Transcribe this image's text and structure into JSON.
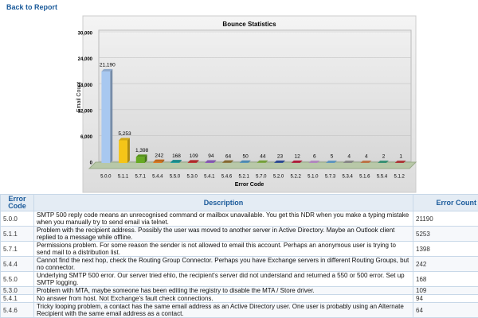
{
  "header": {
    "link": "Back to Report"
  },
  "chart_data": {
    "type": "bar",
    "title": "Bounce Statistics",
    "y_label": "Email Count",
    "x_label": "Error Code",
    "categories": [
      "5.0.0",
      "5.1.1",
      "5.7.1",
      "5.4.4",
      "5.5.0",
      "5.3.0",
      "5.4.1",
      "5.4.6",
      "5.2.1",
      "5.7.0",
      "5.2.0",
      "5.2.2",
      "5.1.0",
      "5.7.3",
      "5.3.4",
      "5.1.6",
      "5.5.4",
      "5.1.2"
    ],
    "values": [
      21190,
      5253,
      1398,
      242,
      168,
      109,
      94,
      64,
      50,
      44,
      23,
      12,
      6,
      5,
      4,
      4,
      2,
      1
    ],
    "value_labels": [
      "21,190",
      "5,253",
      "1,398",
      "242",
      "168",
      "109",
      "94",
      "64",
      "50",
      "44",
      "23",
      "12",
      "6",
      "5",
      "4",
      "4",
      "2",
      "1"
    ],
    "colors": [
      "#a8c8f0",
      "#f5c518",
      "#66aa22",
      "#e07a20",
      "#20a0a0",
      "#cc3333",
      "#9966cc",
      "#9a7a3a",
      "#5aa0d0",
      "#88bb44",
      "#3355aa",
      "#cc2244",
      "#d0a0e0",
      "#70b0e0",
      "#a0a0a0",
      "#dd8855",
      "#44aa88",
      "#cc4444"
    ],
    "ylim": [
      0,
      30000
    ],
    "yticks": [
      0,
      {
        "value": 6000,
        "label": "6,000"
      },
      {
        "value": 12000,
        "label": "12,000"
      },
      {
        "value": 18000,
        "label": "18,000"
      },
      {
        "value": 24000,
        "label": "24,000"
      },
      {
        "value": 30000,
        "label": "30,000"
      }
    ],
    "grid": true
  },
  "table": {
    "columns": [
      "Error Code",
      "Description",
      "Error Count"
    ],
    "rows": [
      [
        "5.0.0",
        "SMTP 500 reply code means an unrecognised command or mailbox unavailable. You get this NDR when you make a typing mistake when you manually try to send email via telnet.",
        21190
      ],
      [
        "5.1.1",
        "Problem with the recipient address. Possibly the user was moved to another server in Active Directory. Maybe an Outlook client replied to a message while offline.",
        5253
      ],
      [
        "5.7.1",
        "Permissions problem. For some reason the sender is not allowed to email this account. Perhaps an anonymous user is trying to send mail to a distribution list.",
        1398
      ],
      [
        "5.4.4",
        "Cannot find the next hop, check the Routing Group Connector. Perhaps you have Exchange servers in different Routing Groups, but no connector.",
        242
      ],
      [
        "5.5.0",
        "Underlying SMTP 500 error. Our server tried ehlo, the recipient's server did not understand and returned a 550 or 500 error. Set up SMTP logging.",
        168
      ],
      [
        "5.3.0",
        "Problem with MTA, maybe someone has been editing the registry to disable the MTA / Store driver.",
        109
      ],
      [
        "5.4.1",
        "No answer from host. Not Exchange's fault check connections.",
        94
      ],
      [
        "5.4.6",
        "Tricky looping problem, a contact has the same email address as an Active Directory user. One user is probably using an Alternate Recipient with the same email address as a contact.",
        64
      ]
    ]
  }
}
